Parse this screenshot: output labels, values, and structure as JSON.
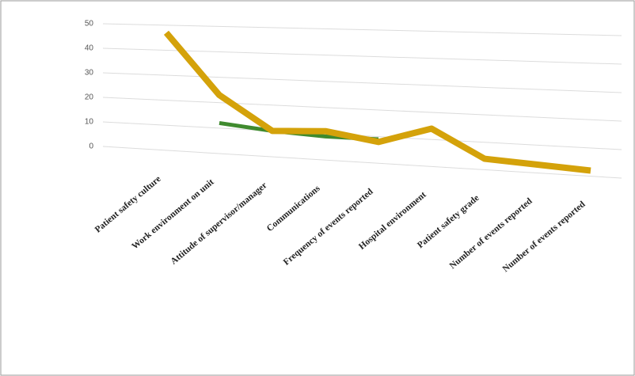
{
  "chart_data": {
    "type": "line",
    "categories": [
      "Patient safety culture",
      "Work environment on unit",
      "Attitude of supervisor/manager",
      "Communications",
      "Frequency of events reported",
      "Hospital environment",
      "Patient safety grade",
      "Number of events reported",
      "Number of events reported"
    ],
    "series": [
      {
        "color": "#d4a20a",
        "values": [
          47,
          23,
          10,
          11,
          8,
          14,
          4,
          3,
          2
        ]
      },
      {
        "color": "#3f8a2e",
        "values": [
          null,
          12,
          10,
          9,
          9,
          null,
          null,
          null,
          null
        ]
      }
    ],
    "ylim": [
      0,
      50
    ],
    "yticks": [
      0,
      10,
      20,
      30,
      40,
      50
    ],
    "grid": true
  }
}
